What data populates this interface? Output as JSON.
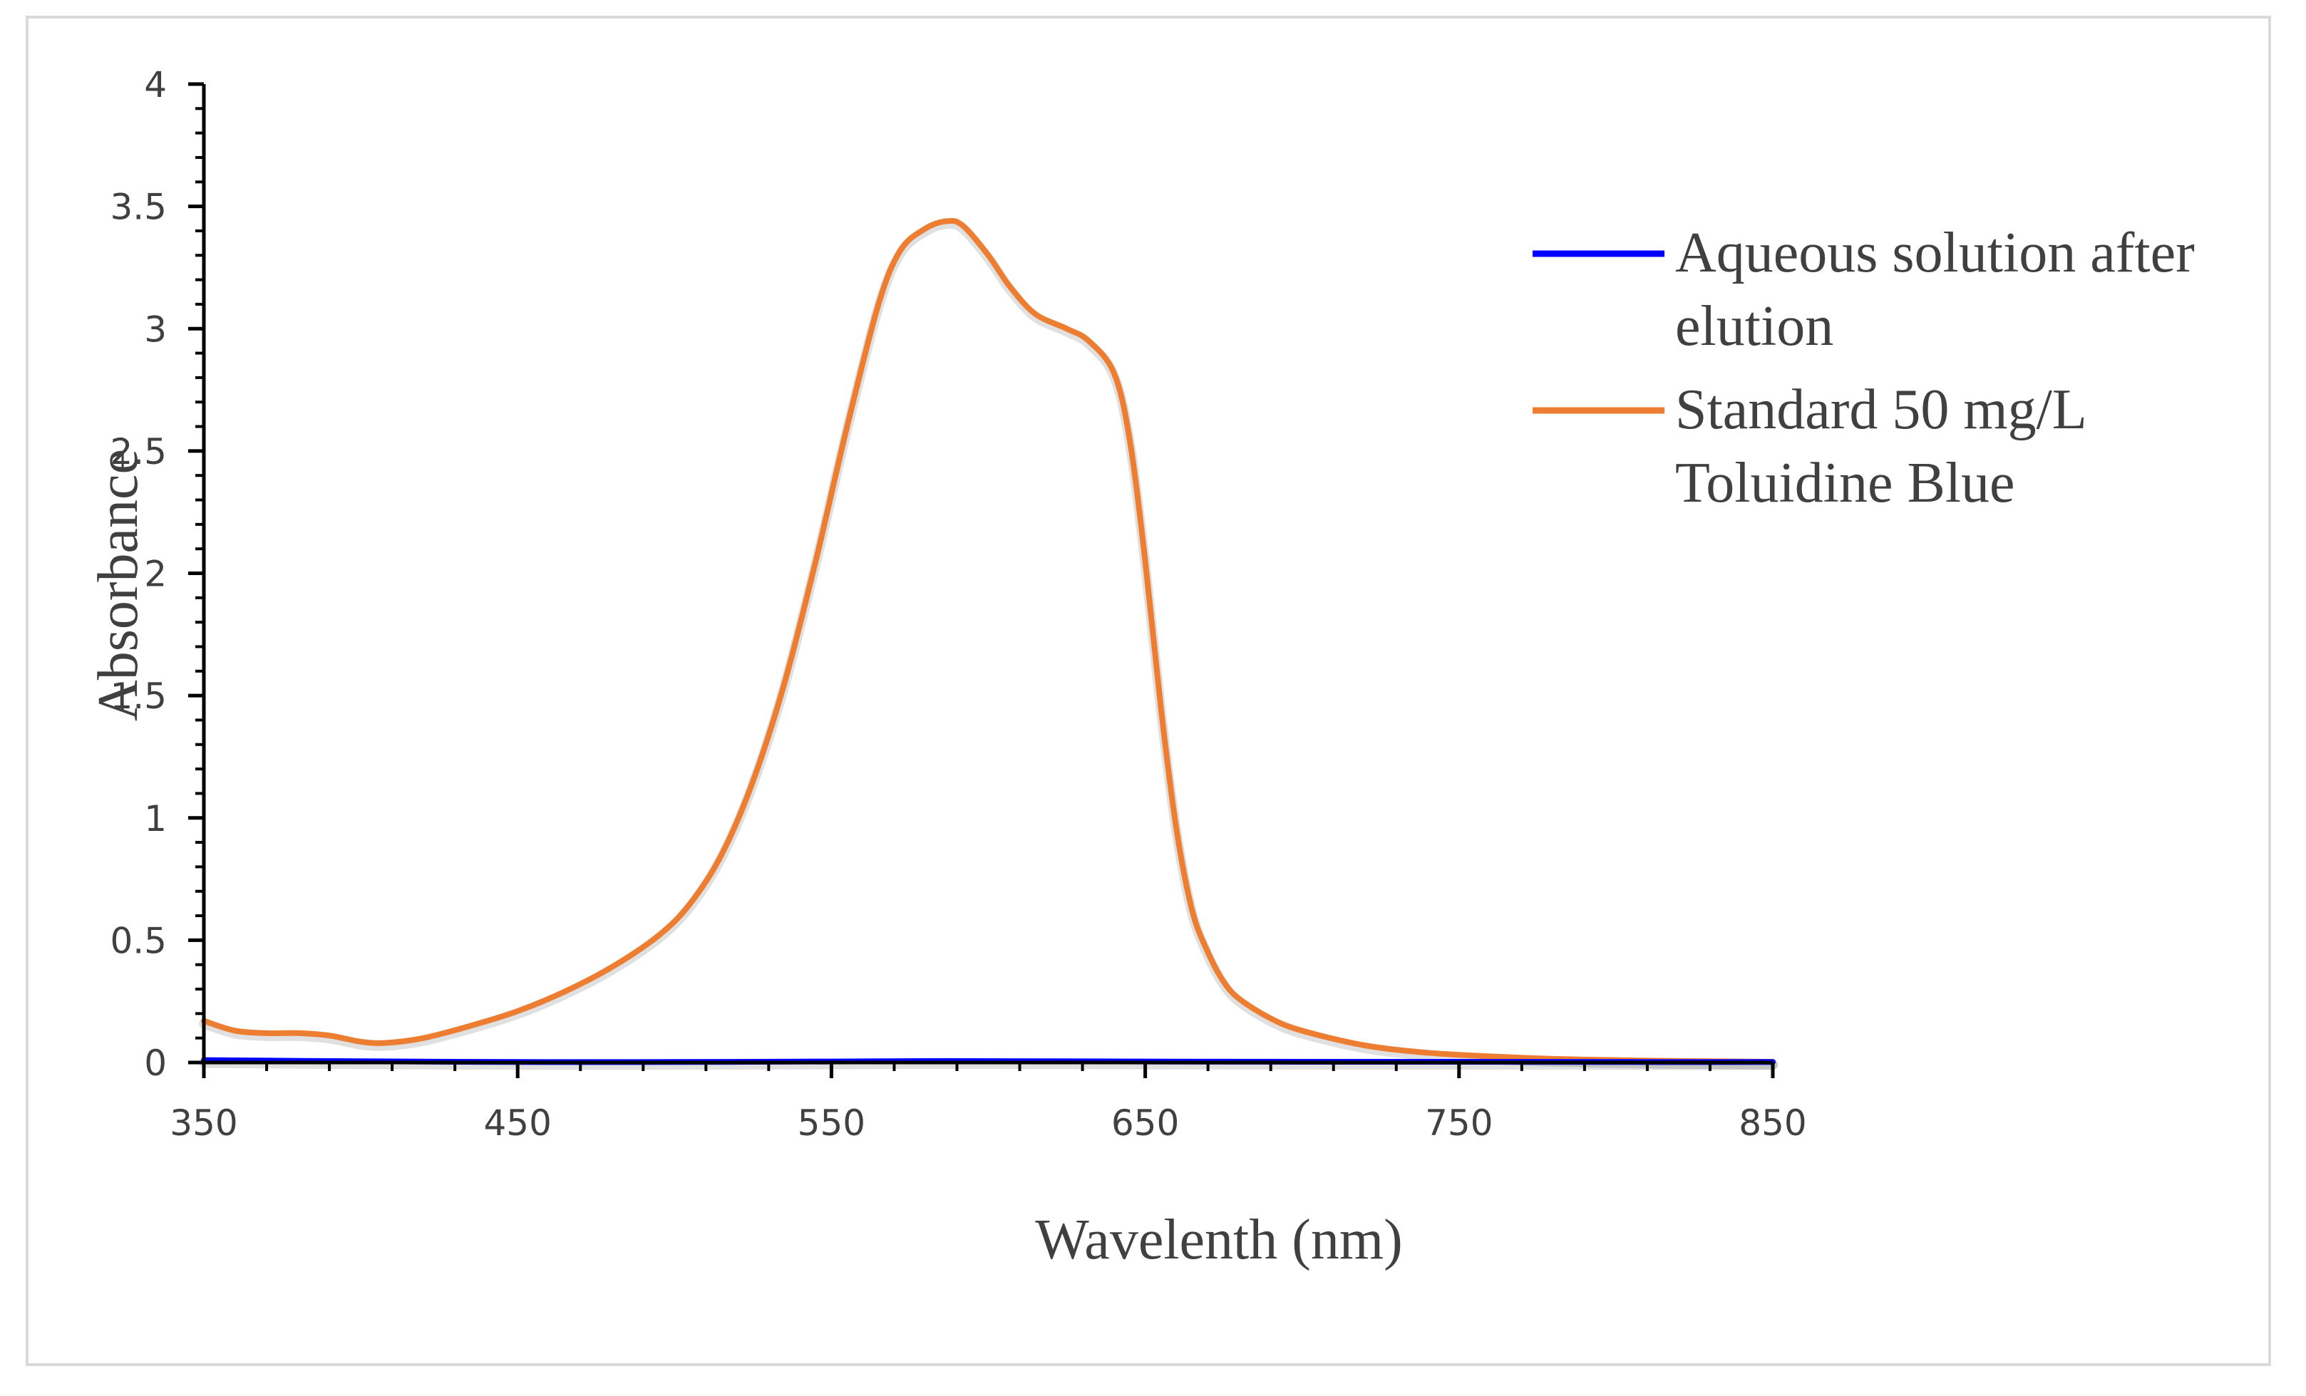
{
  "chart_data": {
    "type": "line",
    "title": "",
    "xlabel": "Wavelenth (nm)",
    "ylabel": "Absorbance",
    "xlim": [
      350,
      850
    ],
    "ylim": [
      0,
      4
    ],
    "xticks": [
      350,
      450,
      550,
      650,
      750,
      850
    ],
    "yticks": [
      0,
      0.5,
      1,
      1.5,
      2,
      2.5,
      3,
      3.5,
      4
    ],
    "xtick_labels": [
      "350",
      "450",
      "550",
      "650",
      "750",
      "850"
    ],
    "ytick_labels": [
      "0",
      "0.5",
      "1",
      "1.5",
      "2",
      "2.5",
      "3",
      "3.5",
      "4"
    ],
    "grid": false,
    "legend_position": "right",
    "series": [
      {
        "name": "Aqueous solution after elution",
        "legend_lines": [
          "Aqueous solution after",
          "elution"
        ],
        "color": "#0000ff",
        "x": [
          350,
          400,
          450,
          500,
          550,
          587,
          650,
          700,
          750,
          800,
          850
        ],
        "y": [
          0.01,
          0.005,
          0.002,
          0.002,
          0.004,
          0.006,
          0.004,
          0.003,
          0.003,
          0.002,
          0.002
        ]
      },
      {
        "name": "Standard 50 mg/L Toluidine Blue",
        "legend_lines": [
          "Standard 50 mg/L",
          "Toluidine Blue"
        ],
        "color": "#ed7d31",
        "x": [
          350,
          360,
          370,
          380,
          390,
          400,
          408,
          420,
          435,
          450,
          465,
          480,
          495,
          505,
          515,
          525,
          535,
          545,
          555,
          565,
          572,
          580,
          587,
          592,
          600,
          607,
          615,
          625,
          632,
          640,
          645,
          650,
          655,
          660,
          665,
          670,
          675,
          680,
          690,
          700,
          720,
          740,
          760,
          780,
          800,
          820,
          850
        ],
        "y": [
          0.17,
          0.13,
          0.12,
          0.12,
          0.11,
          0.085,
          0.08,
          0.1,
          0.15,
          0.21,
          0.29,
          0.39,
          0.52,
          0.65,
          0.85,
          1.15,
          1.55,
          2.05,
          2.6,
          3.1,
          3.32,
          3.41,
          3.44,
          3.42,
          3.3,
          3.17,
          3.06,
          3.0,
          2.95,
          2.82,
          2.55,
          2.05,
          1.45,
          0.95,
          0.62,
          0.45,
          0.33,
          0.26,
          0.18,
          0.13,
          0.07,
          0.04,
          0.025,
          0.015,
          0.01,
          0.006,
          0.003
        ]
      }
    ]
  }
}
